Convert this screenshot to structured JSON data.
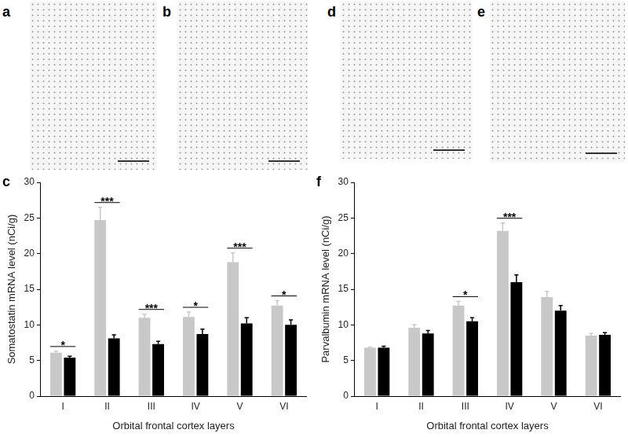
{
  "panels": [
    {
      "label": "a"
    },
    {
      "label": "b"
    },
    {
      "label": "d"
    },
    {
      "label": "e"
    }
  ],
  "chart_data": [
    {
      "type": "bar",
      "panel": "c",
      "categories": [
        "I",
        "II",
        "III",
        "IV",
        "V",
        "VI"
      ],
      "x_label": "Orbital frontal cortex layers",
      "y_label": "Somatostatin mRNA level (nCi/g)",
      "series": [
        {
          "color": "#c8c8c8",
          "values": [
            6.1,
            24.7,
            11.0,
            11.1,
            18.8,
            12.7
          ],
          "errors": [
            0.2,
            1.8,
            0.5,
            0.7,
            1.3,
            0.7
          ]
        },
        {
          "color": "#000000",
          "values": [
            5.4,
            8.1,
            7.3,
            8.7,
            10.2,
            10.0
          ],
          "errors": [
            0.2,
            0.5,
            0.4,
            0.7,
            0.8,
            0.7
          ]
        }
      ],
      "ylim": [
        0,
        30
      ],
      "yticks": [
        0,
        5,
        10,
        15,
        20,
        25,
        30
      ],
      "grid": false,
      "annotations": [
        {
          "category": "I",
          "text": "*"
        },
        {
          "category": "II",
          "text": "***"
        },
        {
          "category": "III",
          "text": "***"
        },
        {
          "category": "IV",
          "text": "*"
        },
        {
          "category": "V",
          "text": "***"
        },
        {
          "category": "VI",
          "text": "*"
        }
      ]
    },
    {
      "type": "bar",
      "panel": "f",
      "categories": [
        "I",
        "II",
        "III",
        "IV",
        "V",
        "VI"
      ],
      "x_label": "Orbital frontal cortex layers",
      "y_label": "Parvalbumin mRNA level (nCi/g)",
      "series": [
        {
          "color": "#c8c8c8",
          "values": [
            6.8,
            9.6,
            12.7,
            23.2,
            13.9,
            8.5
          ],
          "errors": [
            0.1,
            0.4,
            0.6,
            1.1,
            0.8,
            0.3
          ]
        },
        {
          "color": "#000000",
          "values": [
            6.8,
            8.8,
            10.5,
            16.0,
            12.0,
            8.6
          ],
          "errors": [
            0.2,
            0.4,
            0.5,
            1.0,
            0.7,
            0.3
          ]
        }
      ],
      "ylim": [
        0,
        30
      ],
      "yticks": [
        0,
        5,
        10,
        15,
        20,
        25,
        30
      ],
      "grid": false,
      "annotations": [
        {
          "category": "III",
          "text": "*"
        },
        {
          "category": "IV",
          "text": "***"
        }
      ]
    }
  ]
}
